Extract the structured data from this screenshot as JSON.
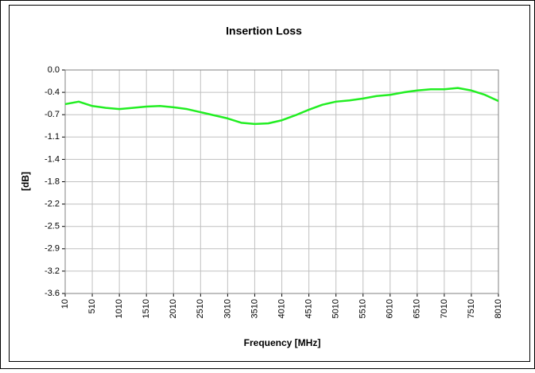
{
  "chart_data": {
    "type": "line",
    "title": "Insertion Loss",
    "x_label": "Frequency [MHz]",
    "y_label": "[dB]",
    "x": [
      10,
      260,
      510,
      760,
      1010,
      1260,
      1510,
      1760,
      2010,
      2260,
      2510,
      2760,
      3010,
      3260,
      3510,
      3760,
      4010,
      4260,
      4510,
      4760,
      5010,
      5260,
      5510,
      5760,
      6010,
      6260,
      6510,
      6760,
      7010,
      7260,
      7510,
      7760,
      8010
    ],
    "series": [
      {
        "color": "#22ee22",
        "values": [
          -0.55,
          -0.51,
          -0.58,
          -0.61,
          -0.63,
          -0.61,
          -0.59,
          -0.58,
          -0.6,
          -0.63,
          -0.68,
          -0.73,
          -0.78,
          -0.85,
          -0.87,
          -0.86,
          -0.81,
          -0.73,
          -0.64,
          -0.56,
          -0.51,
          -0.49,
          -0.46,
          -0.42,
          -0.4,
          -0.36,
          -0.33,
          -0.31,
          -0.31,
          -0.29,
          -0.33,
          -0.4,
          -0.5
        ]
      }
    ],
    "xlim": [
      10,
      8010
    ],
    "xticks": [
      10,
      510,
      1010,
      1510,
      2010,
      2510,
      3010,
      3510,
      4010,
      4510,
      5010,
      5510,
      6010,
      6510,
      7010,
      7510,
      8010
    ],
    "ylim": [
      -3.6,
      0
    ],
    "yticks": [
      {
        "value": 0,
        "label": "0.0"
      },
      {
        "value": -0.36,
        "label": "-0.4"
      },
      {
        "value": -0.72,
        "label": "-0.7"
      },
      {
        "value": -1.08,
        "label": "-1.1"
      },
      {
        "value": -1.44,
        "label": "-1.4"
      },
      -1.8,
      {
        "value": -2.16,
        "label": "-2.2"
      },
      {
        "value": -2.52,
        "label": "-2.5"
      },
      {
        "value": -2.88,
        "label": "-2.9"
      },
      {
        "value": -3.24,
        "label": "-3.2"
      },
      -3.6
    ],
    "grid": true
  }
}
